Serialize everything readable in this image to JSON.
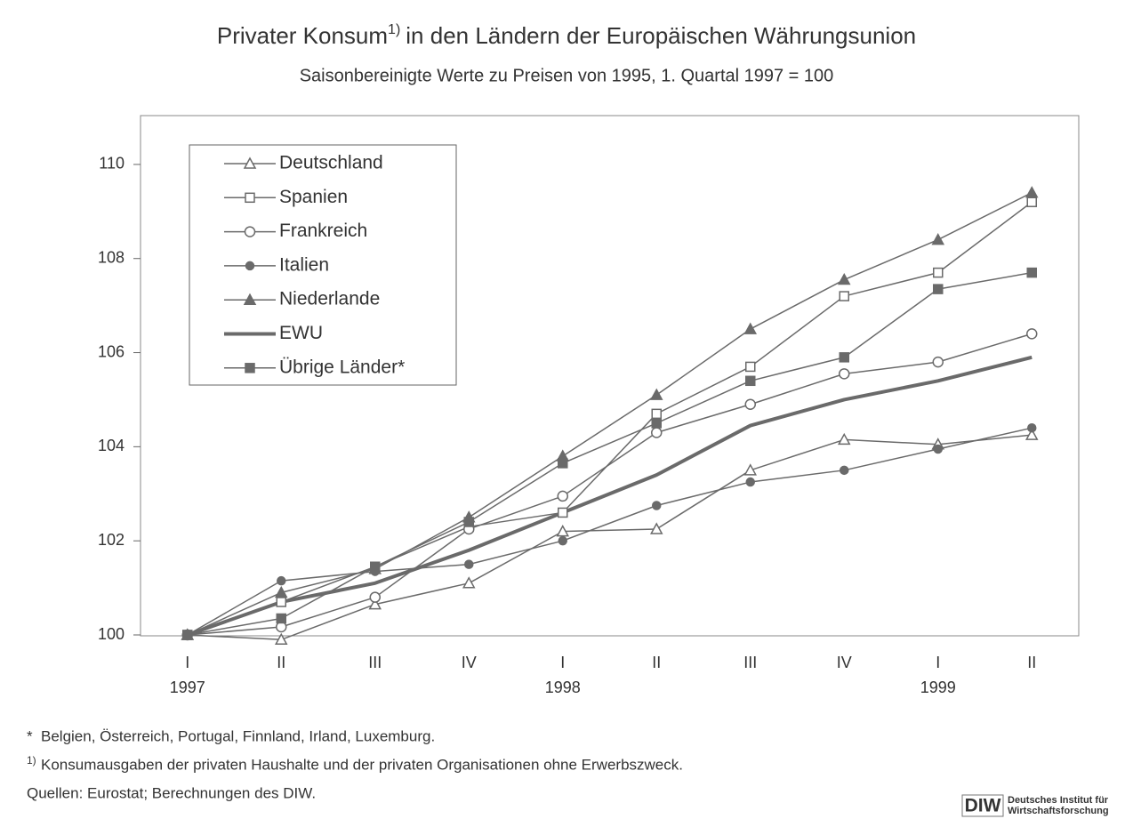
{
  "chart_data": {
    "type": "line",
    "title": "Privater Konsum",
    "title_note": "1)",
    "title_rest": "in den Ländern der Europäischen Währungsunion",
    "subtitle": "Saisonbereinigte Werte zu Preisen von 1995, 1. Quartal 1997 = 100",
    "categories": [
      "I",
      "II",
      "III",
      "IV",
      "I",
      "II",
      "III",
      "IV",
      "I",
      "II"
    ],
    "category_years": [
      "1997",
      null,
      null,
      null,
      "1998",
      null,
      null,
      null,
      "1999",
      null
    ],
    "ylim": [
      100,
      111
    ],
    "yticks": [
      100,
      102,
      104,
      106,
      108,
      110
    ],
    "grid": false,
    "legend": "upper left",
    "series": [
      {
        "name": "Deutschland",
        "color": "#6a6a6a",
        "marker": "triangle-open",
        "width": 1.5,
        "values": [
          100,
          99.9,
          100.65,
          101.1,
          102.2,
          102.25,
          103.5,
          104.15,
          104.05,
          104.25
        ]
      },
      {
        "name": "Spanien",
        "color": "#6a6a6a",
        "marker": "square-open",
        "width": 1.5,
        "values": [
          100,
          100.7,
          101.45,
          102.3,
          102.6,
          104.7,
          105.7,
          107.2,
          107.7,
          109.2
        ]
      },
      {
        "name": "Frankreich",
        "color": "#6a6a6a",
        "marker": "circle-open",
        "width": 1.5,
        "values": [
          100,
          100.17,
          100.8,
          102.25,
          102.95,
          104.3,
          104.9,
          105.55,
          105.8,
          106.4
        ]
      },
      {
        "name": "Italien",
        "color": "#6a6a6a",
        "marker": "circle",
        "width": 1.5,
        "values": [
          100,
          101.15,
          101.35,
          101.5,
          102.0,
          102.75,
          103.25,
          103.5,
          103.95,
          104.4
        ]
      },
      {
        "name": "Niederlande",
        "color": "#6a6a6a",
        "marker": "triangle",
        "width": 1.5,
        "values": [
          100,
          100.9,
          101.4,
          102.5,
          103.8,
          105.1,
          106.5,
          107.55,
          108.4,
          109.4
        ]
      },
      {
        "name": "EWU",
        "color": "#6a6a6a",
        "marker": "none",
        "width": 4,
        "values": [
          100,
          100.7,
          101.1,
          101.8,
          102.6,
          103.4,
          104.45,
          105.0,
          105.4,
          105.9
        ]
      },
      {
        "name": "Übrige Länder*",
        "color": "#6a6a6a",
        "marker": "square",
        "width": 1.5,
        "values": [
          100,
          100.35,
          101.45,
          102.4,
          103.65,
          104.5,
          105.4,
          105.9,
          107.35,
          107.7
        ]
      }
    ],
    "footnotes": [
      {
        "mark": "*",
        "text": "Belgien, Österreich, Portugal, Finnland, Irland, Luxemburg."
      },
      {
        "mark": "1)",
        "text": "Konsumausgaben der privaten Haushalte und der privaten Organisationen ohne Erwerbszweck."
      },
      {
        "mark": null,
        "text": "Quellen: Eurostat; Berechnungen des DIW."
      }
    ],
    "logo": {
      "short": "DIW",
      "line1": "Deutsches Institut für",
      "line2": "Wirtschaftsforschung"
    }
  }
}
